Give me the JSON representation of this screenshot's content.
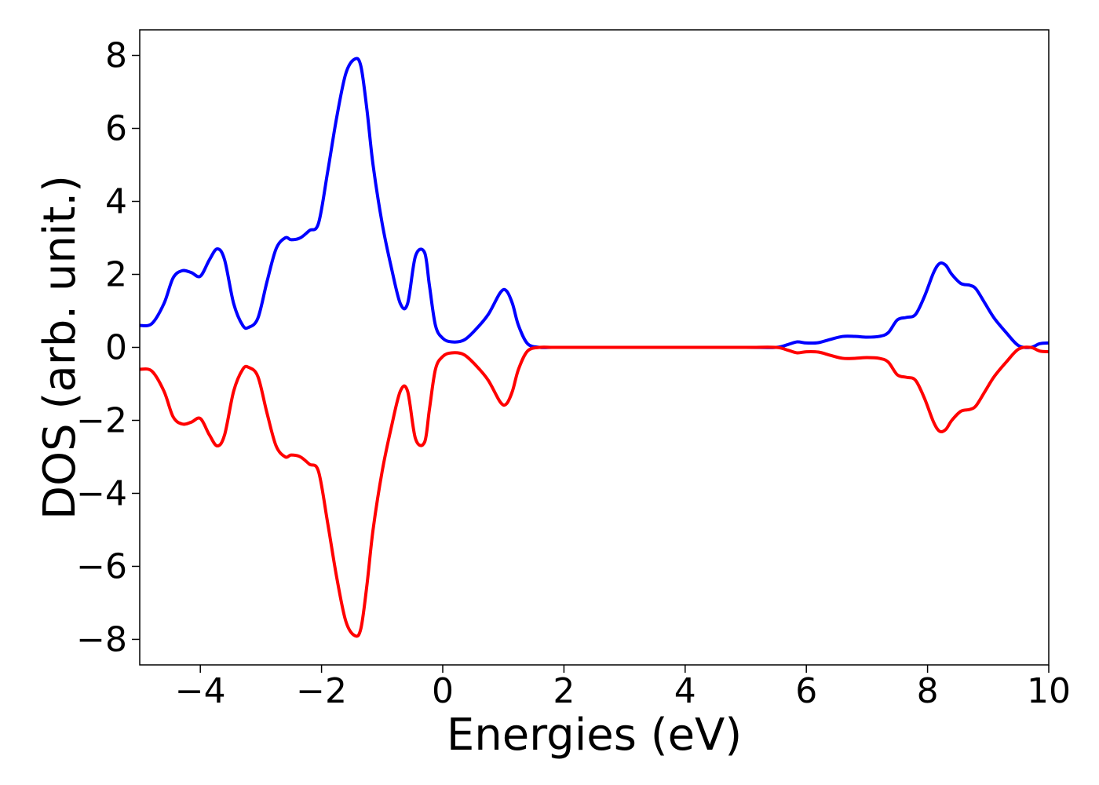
{
  "chart_data": {
    "type": "line",
    "title": "",
    "xlabel": "Energies (eV)",
    "ylabel": "DOS (arb. unit.)",
    "xlim": [
      -5,
      10
    ],
    "ylim": [
      -8.7,
      8.7
    ],
    "xticks": [
      -4,
      -2,
      0,
      2,
      4,
      6,
      8,
      10
    ],
    "xtick_labels": [
      "−4",
      "−2",
      "0",
      "2",
      "4",
      "6",
      "8",
      "10"
    ],
    "yticks": [
      8,
      6,
      4,
      2,
      0,
      -2,
      -4,
      -6,
      -8
    ],
    "ytick_labels": [
      "8",
      "6",
      "4",
      "2",
      "0",
      "−2",
      "−4",
      "−6",
      "−8"
    ],
    "grid": false,
    "legend": "none",
    "series": [
      {
        "color": "#0000ff",
        "x": [
          -5.0,
          -4.8,
          -4.6,
          -4.45,
          -4.3,
          -4.15,
          -4.0,
          -3.85,
          -3.72,
          -3.6,
          -3.45,
          -3.3,
          -3.2,
          -3.05,
          -2.9,
          -2.75,
          -2.6,
          -2.5,
          -2.35,
          -2.2,
          -2.05,
          -1.9,
          -1.75,
          -1.6,
          -1.45,
          -1.35,
          -1.25,
          -1.15,
          -1.0,
          -0.85,
          -0.7,
          -0.58,
          -0.45,
          -0.3,
          -0.22,
          -0.12,
          0.0,
          0.15,
          0.35,
          0.55,
          0.75,
          0.95,
          1.05,
          1.15,
          1.25,
          1.4,
          1.6,
          1.8,
          2.0,
          3.0,
          4.0,
          5.0,
          5.5,
          5.7,
          5.85,
          6.0,
          6.2,
          6.4,
          6.6,
          6.8,
          7.0,
          7.2,
          7.35,
          7.5,
          7.65,
          7.8,
          7.95,
          8.1,
          8.2,
          8.3,
          8.4,
          8.55,
          8.7,
          8.8,
          8.95,
          9.1,
          9.3,
          9.5,
          9.7,
          9.85,
          10.0
        ],
        "y": [
          0.6,
          0.65,
          1.2,
          1.9,
          2.1,
          2.05,
          1.95,
          2.4,
          2.7,
          2.4,
          1.2,
          0.6,
          0.55,
          0.8,
          1.8,
          2.7,
          3.0,
          2.95,
          3.0,
          3.2,
          3.4,
          4.8,
          6.3,
          7.5,
          7.9,
          7.7,
          6.5,
          5.0,
          3.4,
          2.2,
          1.2,
          1.2,
          2.5,
          2.6,
          1.7,
          0.6,
          0.25,
          0.15,
          0.2,
          0.5,
          0.9,
          1.5,
          1.55,
          1.2,
          0.6,
          0.1,
          0.0,
          0.0,
          0.0,
          0.0,
          0.0,
          0.0,
          0.0,
          0.08,
          0.15,
          0.12,
          0.13,
          0.22,
          0.3,
          0.3,
          0.28,
          0.3,
          0.4,
          0.75,
          0.82,
          0.9,
          1.4,
          2.05,
          2.3,
          2.25,
          2.0,
          1.75,
          1.7,
          1.6,
          1.2,
          0.8,
          0.4,
          0.05,
          0.0,
          0.1,
          0.12
        ]
      },
      {
        "color": "#ff0000",
        "x": [
          -5.0,
          -4.8,
          -4.6,
          -4.45,
          -4.3,
          -4.15,
          -4.0,
          -3.85,
          -3.72,
          -3.6,
          -3.45,
          -3.3,
          -3.2,
          -3.05,
          -2.9,
          -2.75,
          -2.6,
          -2.5,
          -2.35,
          -2.2,
          -2.05,
          -1.9,
          -1.75,
          -1.6,
          -1.45,
          -1.35,
          -1.25,
          -1.15,
          -1.0,
          -0.85,
          -0.7,
          -0.58,
          -0.45,
          -0.3,
          -0.22,
          -0.12,
          0.0,
          0.15,
          0.35,
          0.55,
          0.75,
          0.95,
          1.05,
          1.15,
          1.25,
          1.4,
          1.6,
          1.8,
          2.0,
          3.0,
          4.0,
          5.0,
          5.5,
          5.7,
          5.85,
          6.0,
          6.2,
          6.4,
          6.6,
          6.8,
          7.0,
          7.2,
          7.35,
          7.5,
          7.65,
          7.8,
          7.95,
          8.1,
          8.2,
          8.3,
          8.4,
          8.55,
          8.7,
          8.8,
          8.95,
          9.1,
          9.3,
          9.5,
          9.7,
          9.85,
          10.0
        ],
        "y": [
          -0.6,
          -0.65,
          -1.2,
          -1.9,
          -2.1,
          -2.05,
          -1.95,
          -2.4,
          -2.7,
          -2.4,
          -1.2,
          -0.6,
          -0.55,
          -0.8,
          -1.8,
          -2.7,
          -3.0,
          -2.95,
          -3.0,
          -3.2,
          -3.4,
          -4.8,
          -6.3,
          -7.5,
          -7.9,
          -7.7,
          -6.5,
          -5.0,
          -3.4,
          -2.2,
          -1.2,
          -1.2,
          -2.5,
          -2.6,
          -1.7,
          -0.6,
          -0.25,
          -0.15,
          -0.2,
          -0.5,
          -0.9,
          -1.5,
          -1.55,
          -1.2,
          -0.6,
          -0.1,
          0.0,
          0.0,
          0.0,
          0.0,
          0.0,
          0.0,
          0.0,
          -0.08,
          -0.15,
          -0.12,
          -0.13,
          -0.22,
          -0.3,
          -0.3,
          -0.28,
          -0.3,
          -0.4,
          -0.75,
          -0.82,
          -0.9,
          -1.4,
          -2.05,
          -2.3,
          -2.25,
          -2.0,
          -1.75,
          -1.7,
          -1.6,
          -1.2,
          -0.8,
          -0.4,
          -0.05,
          0.0,
          -0.1,
          -0.12
        ]
      }
    ]
  }
}
